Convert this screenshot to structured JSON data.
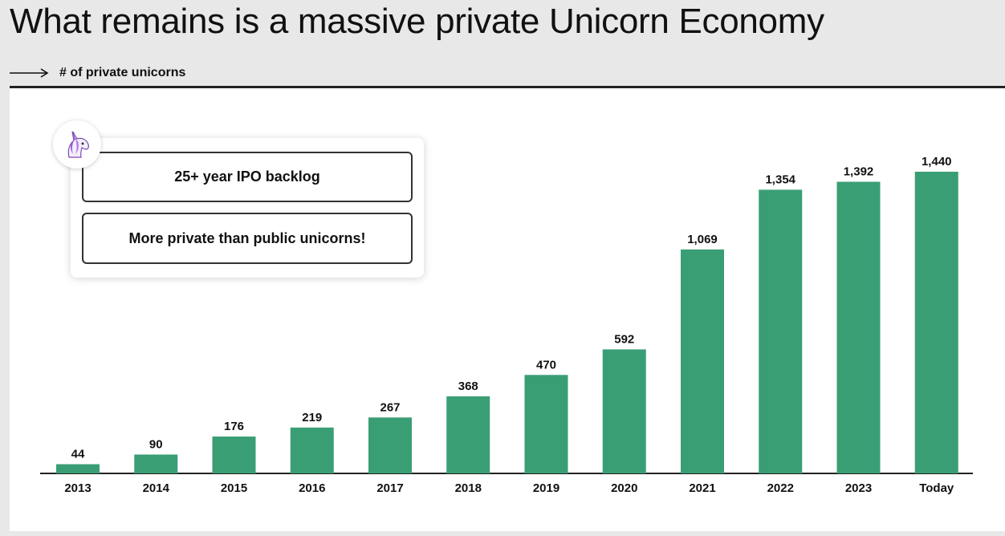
{
  "header": {
    "title": "What remains is a massive private Unicorn Economy",
    "subtitle": "# of private unicorns"
  },
  "callout": {
    "icon": "unicorn-icon",
    "line1": "25+ year IPO backlog",
    "line2": "More private than public unicorns!"
  },
  "colors": {
    "bar": "#3a9e74",
    "background": "#e8e8e8",
    "panel": "#ffffff"
  },
  "chart_data": {
    "type": "bar",
    "categories": [
      "2013",
      "2014",
      "2015",
      "2016",
      "2017",
      "2018",
      "2019",
      "2020",
      "2021",
      "2022",
      "2023",
      "Today"
    ],
    "values": [
      44,
      90,
      176,
      219,
      267,
      368,
      470,
      592,
      1069,
      1354,
      1392,
      1440
    ],
    "value_labels": [
      "44",
      "90",
      "176",
      "219",
      "267",
      "368",
      "470",
      "592",
      "1,069",
      "1,354",
      "1,392",
      "1,440"
    ],
    "title": "# of private unicorns",
    "xlabel": "",
    "ylabel": "",
    "ylim": [
      0,
      1440
    ],
    "grid": false,
    "legend": "none"
  }
}
